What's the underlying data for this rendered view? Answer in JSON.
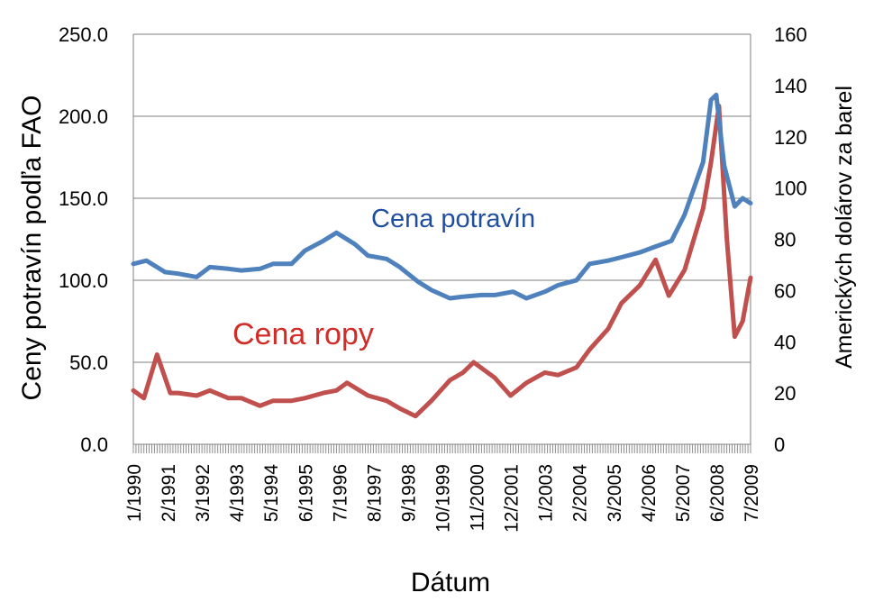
{
  "chart_data": {
    "type": "line",
    "xlabel": "Dátum",
    "ylabel": "Ceny potravín podľa FAO",
    "ylabel_right": "Amerických dolárov za barel",
    "ylim": [
      0,
      250
    ],
    "ylim_right": [
      0,
      160
    ],
    "yticks": [
      "0.0",
      "50.0",
      "100.0",
      "150.0",
      "200.0",
      "250.0"
    ],
    "yticks_right": [
      "0",
      "20",
      "40",
      "60",
      "80",
      "100",
      "120",
      "140",
      "160"
    ],
    "x_tick_labels": [
      "1/1990",
      "2/1991",
      "3/1992",
      "4/1993",
      "5/1994",
      "6/1995",
      "7/1996",
      "8/1997",
      "9/1998",
      "10/1999",
      "11/2000",
      "12/2001",
      "1/2003",
      "2/2004",
      "3/2005",
      "4/2006",
      "5/2007",
      "6/2008",
      "7/2009"
    ],
    "grid": true,
    "series": [
      {
        "name": "Cena potravín",
        "axis": "left",
        "color": "#4f81bd",
        "label_color": "#1f4e9e",
        "x": [
          "1990-01",
          "1990-06",
          "1991-01",
          "1991-06",
          "1992-01",
          "1992-06",
          "1993-01",
          "1993-06",
          "1994-01",
          "1994-06",
          "1995-01",
          "1995-06",
          "1996-01",
          "1996-06",
          "1997-01",
          "1997-06",
          "1998-01",
          "1998-06",
          "1999-01",
          "1999-06",
          "2000-01",
          "2000-06",
          "2001-01",
          "2001-06",
          "2002-01",
          "2002-06",
          "2003-01",
          "2003-06",
          "2004-01",
          "2004-06",
          "2005-01",
          "2005-06",
          "2006-01",
          "2006-06",
          "2007-01",
          "2007-06",
          "2008-01",
          "2008-04",
          "2008-06",
          "2008-09",
          "2009-01",
          "2009-04",
          "2009-07"
        ],
        "values": [
          110,
          112,
          105,
          104,
          102,
          108,
          107,
          106,
          107,
          110,
          110,
          118,
          124,
          129,
          122,
          115,
          113,
          108,
          99,
          94,
          89,
          90,
          91,
          91,
          93,
          89,
          93,
          97,
          100,
          110,
          112,
          114,
          117,
          120,
          124,
          140,
          172,
          210,
          213,
          170,
          145,
          150,
          147
        ]
      },
      {
        "name": "Cena ropy",
        "axis": "right",
        "color": "#c0504d",
        "label_color": "#d32b26",
        "x": [
          "1990-01",
          "1990-05",
          "1990-10",
          "1991-03",
          "1991-06",
          "1992-01",
          "1992-06",
          "1993-01",
          "1993-06",
          "1994-01",
          "1994-06",
          "1995-01",
          "1995-06",
          "1996-01",
          "1996-06",
          "1996-10",
          "1997-06",
          "1998-01",
          "1998-06",
          "1998-12",
          "1999-06",
          "2000-01",
          "2000-06",
          "2000-10",
          "2001-06",
          "2001-12",
          "2002-06",
          "2003-01",
          "2003-06",
          "2004-01",
          "2004-06",
          "2005-01",
          "2005-06",
          "2006-01",
          "2006-07",
          "2006-12",
          "2007-06",
          "2008-01",
          "2008-04",
          "2008-07",
          "2008-10",
          "2009-01",
          "2009-04",
          "2009-07"
        ],
        "values": [
          21,
          18,
          35,
          20,
          20,
          19,
          21,
          18,
          18,
          15,
          17,
          17,
          18,
          20,
          21,
          24,
          19,
          17,
          14,
          11,
          17,
          25,
          28,
          32,
          26,
          19,
          24,
          28,
          27,
          30,
          37,
          45,
          55,
          62,
          72,
          58,
          68,
          92,
          110,
          132,
          80,
          42,
          48,
          65
        ]
      }
    ],
    "series_labels": {
      "food": "Cena potravín",
      "oil": "Cena ropy"
    }
  }
}
